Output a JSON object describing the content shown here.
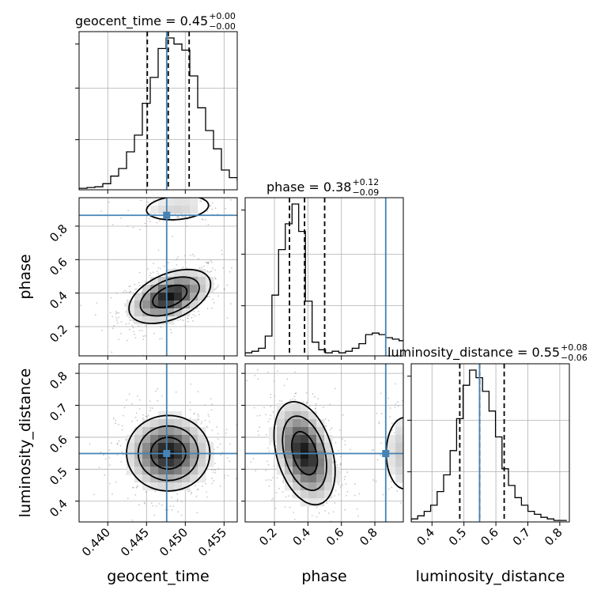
{
  "chart_data": {
    "type": "corner",
    "params": [
      "geocent_time",
      "phase",
      "luminosity_distance"
    ],
    "axis_labels": [
      "geocent_time",
      "phase",
      "luminosity_distance"
    ],
    "ranges": [
      [
        0.4363,
        0.4567
      ],
      [
        0.025,
        0.97
      ],
      [
        0.335,
        0.83
      ]
    ],
    "ticks": [
      [
        0.44,
        0.445,
        0.45,
        0.455
      ],
      [
        0.2,
        0.4,
        0.6,
        0.8
      ],
      [
        0.4,
        0.5,
        0.6,
        0.7,
        0.8
      ]
    ],
    "tick_labels": [
      [
        "0.440",
        "0.445",
        "0.450",
        "0.455"
      ],
      [
        "0.2",
        "0.4",
        "0.6",
        "0.8"
      ],
      [
        "0.4",
        "0.5",
        "0.6",
        "0.7",
        "0.8"
      ]
    ],
    "truths": [
      0.4476,
      0.865,
      0.549
    ],
    "truth_color": "#4682b4",
    "titles": [
      {
        "text": "geocent_time = 0.45",
        "sup": "+0.00",
        "sub": "−0.00"
      },
      {
        "text": "phase = 0.38",
        "sup": "+0.12",
        "sub": "−0.09"
      },
      {
        "text": "luminosity_distance = 0.55",
        "sup": "+0.08",
        "sub": "−0.06"
      }
    ],
    "quantiles": [
      [
        0.4451,
        0.4478,
        0.4505
      ],
      [
        0.29,
        0.38,
        0.5
      ],
      [
        0.487,
        0.549,
        0.626
      ]
    ],
    "histograms": [
      {
        "edges_start": 0.4363,
        "bin_width": 0.00102,
        "counts": [
          0.01,
          0.015,
          0.02,
          0.04,
          0.09,
          0.14,
          0.25,
          0.36,
          0.57,
          0.74,
          0.93,
          1.0,
          0.96,
          0.92,
          0.75,
          0.54,
          0.39,
          0.27,
          0.13,
          0.08,
          0.06,
          0.03,
          0.02,
          0.01,
          0.01
        ]
      },
      {
        "edges_start": 0.025,
        "bin_width": 0.04,
        "counts": [
          0.02,
          0.03,
          0.05,
          0.13,
          0.4,
          0.7,
          0.87,
          1.0,
          0.82,
          0.36,
          0.09,
          0.04,
          0.02,
          0.03,
          0.02,
          0.03,
          0.05,
          0.08,
          0.14,
          0.15,
          0.14,
          0.12,
          0.11,
          0.1
        ]
      },
      {
        "edges_start": 0.335,
        "bin_width": 0.0203,
        "counts": [
          0.02,
          0.04,
          0.07,
          0.11,
          0.2,
          0.31,
          0.47,
          0.68,
          0.9,
          1.0,
          0.95,
          0.86,
          0.73,
          0.56,
          0.35,
          0.24,
          0.16,
          0.11,
          0.07,
          0.05,
          0.03,
          0.02,
          0.01,
          0.01
        ]
      }
    ],
    "blobs": [
      {
        "panel": [
          1,
          0
        ],
        "cx": 0.448,
        "cy": 0.38,
        "sx": 0.00245,
        "sy": 0.075,
        "rho": 0.45,
        "w": 1.0
      },
      {
        "panel": [
          1,
          0
        ],
        "cx": 0.449,
        "cy": 0.91,
        "sx": 0.0025,
        "sy": 0.045,
        "rho": 0.2,
        "w": 0.18
      },
      {
        "panel": [
          2,
          0
        ],
        "cx": 0.4478,
        "cy": 0.55,
        "sx": 0.0025,
        "sy": 0.055,
        "rho": 0.0,
        "w": 1.0
      },
      {
        "panel": [
          2,
          1
        ],
        "cx": 0.38,
        "cy": 0.55,
        "sx": 0.085,
        "sy": 0.075,
        "rho": -0.35,
        "w": 1.0
      },
      {
        "panel": [
          2,
          1
        ],
        "cx": 0.98,
        "cy": 0.55,
        "sx": 0.07,
        "sy": 0.07,
        "rho": 0.0,
        "w": 0.25
      }
    ],
    "grid": true,
    "line_color": "#000000"
  }
}
